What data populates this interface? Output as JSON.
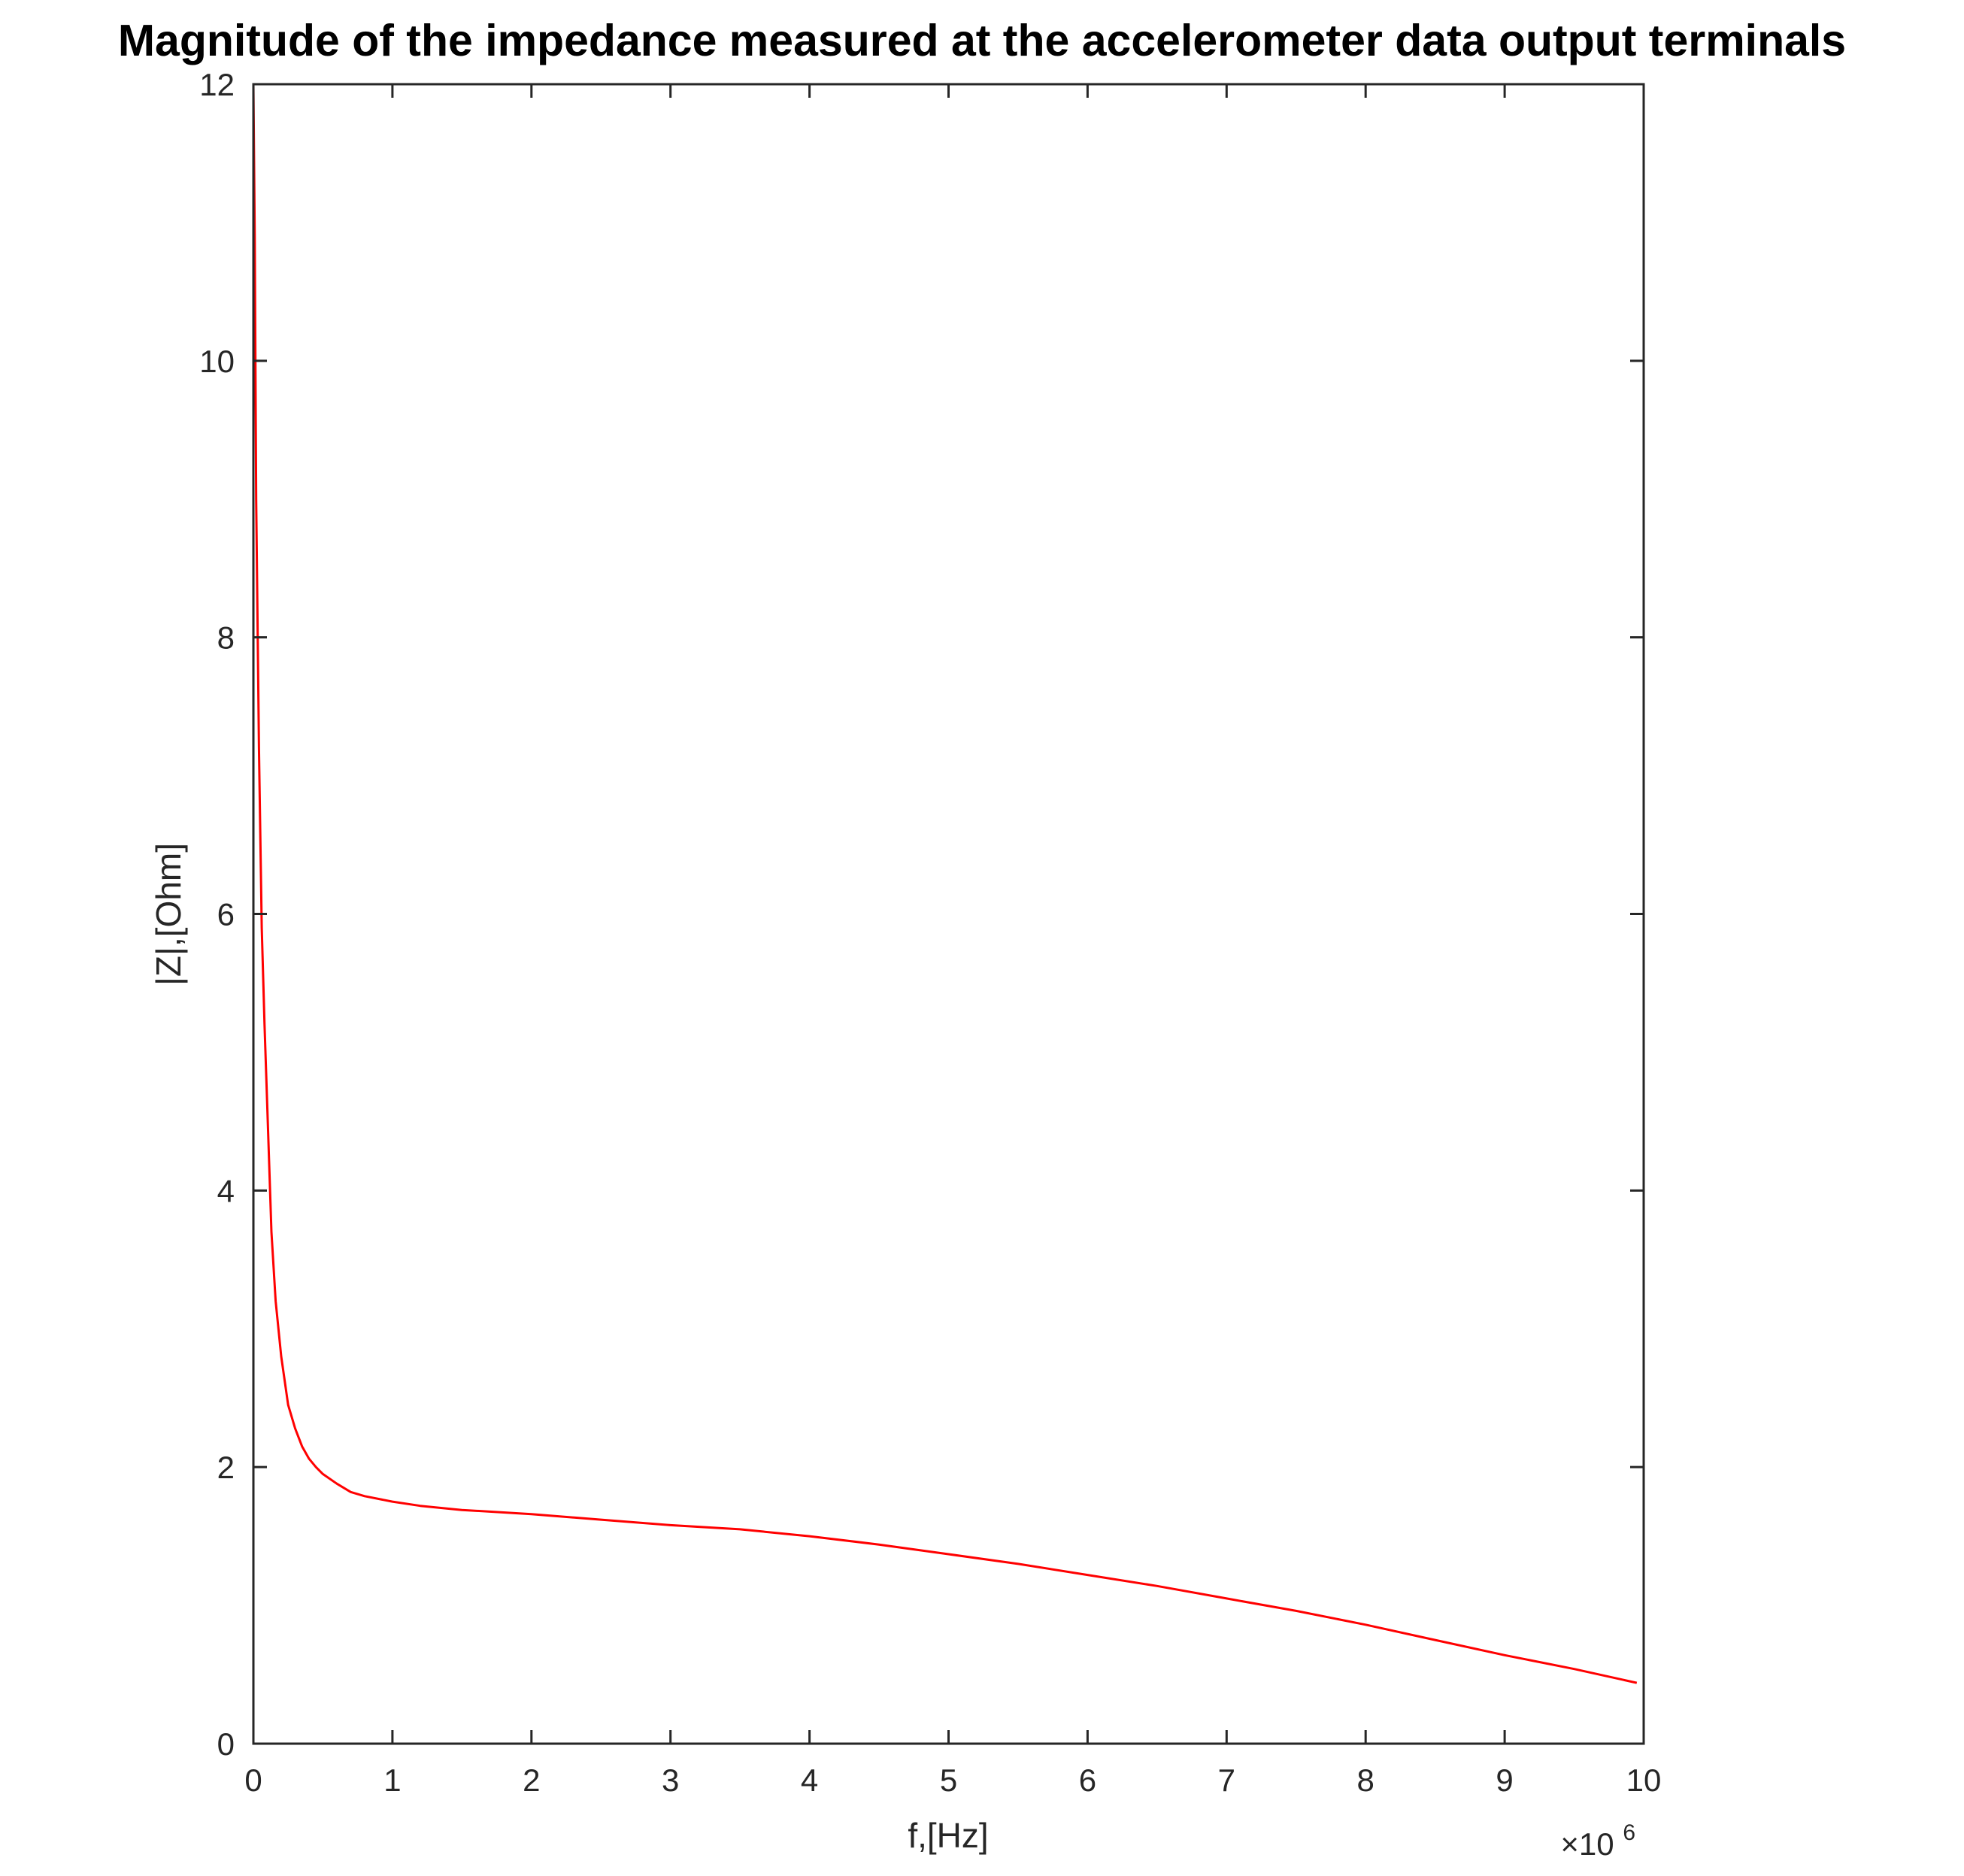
{
  "chart_data": {
    "type": "line",
    "title": "Magnitude of the impedance measured at the accelerometer data output terminals",
    "xlabel": "f,[Hz]",
    "ylabel": "|Z|,[Ohm]",
    "x_exponent_label": "×10⁶",
    "x_exponent_base": "×10",
    "x_exponent_power": "6",
    "xlim": [
      0,
      10000000
    ],
    "ylim": [
      0,
      12
    ],
    "x_ticks": [
      0,
      1000000,
      2000000,
      3000000,
      4000000,
      5000000,
      6000000,
      7000000,
      8000000,
      9000000,
      10000000
    ],
    "x_tick_labels": [
      "0",
      "1",
      "2",
      "3",
      "4",
      "5",
      "6",
      "7",
      "8",
      "9",
      "10"
    ],
    "y_ticks": [
      0,
      2,
      4,
      6,
      8,
      10,
      12
    ],
    "y_tick_labels": [
      "0",
      "2",
      "4",
      "6",
      "8",
      "10",
      "12"
    ],
    "grid": false,
    "line_color": "#ff0000",
    "series": [
      {
        "x": [
          0,
          10000,
          20000,
          40000,
          60000,
          80000,
          100000,
          130000,
          160000,
          200000,
          250000,
          300000,
          350000,
          400000,
          450000,
          500000,
          600000,
          700000,
          800000,
          1000000,
          1200000,
          1500000,
          2000000,
          2500000,
          3000000,
          3500000,
          4000000,
          4500000,
          5000000,
          5500000,
          6000000,
          6500000,
          7000000,
          7500000,
          8000000,
          8500000,
          9000000,
          9500000,
          9950000
        ],
        "y": [
          12.0,
          10.9,
          9.0,
          7.2,
          5.9,
          5.2,
          4.6,
          3.7,
          3.2,
          2.8,
          2.45,
          2.28,
          2.15,
          2.06,
          2.0,
          1.95,
          1.88,
          1.82,
          1.79,
          1.75,
          1.72,
          1.69,
          1.66,
          1.62,
          1.58,
          1.55,
          1.5,
          1.44,
          1.37,
          1.3,
          1.22,
          1.14,
          1.05,
          0.96,
          0.86,
          0.75,
          0.64,
          0.54,
          0.44
        ]
      }
    ]
  }
}
